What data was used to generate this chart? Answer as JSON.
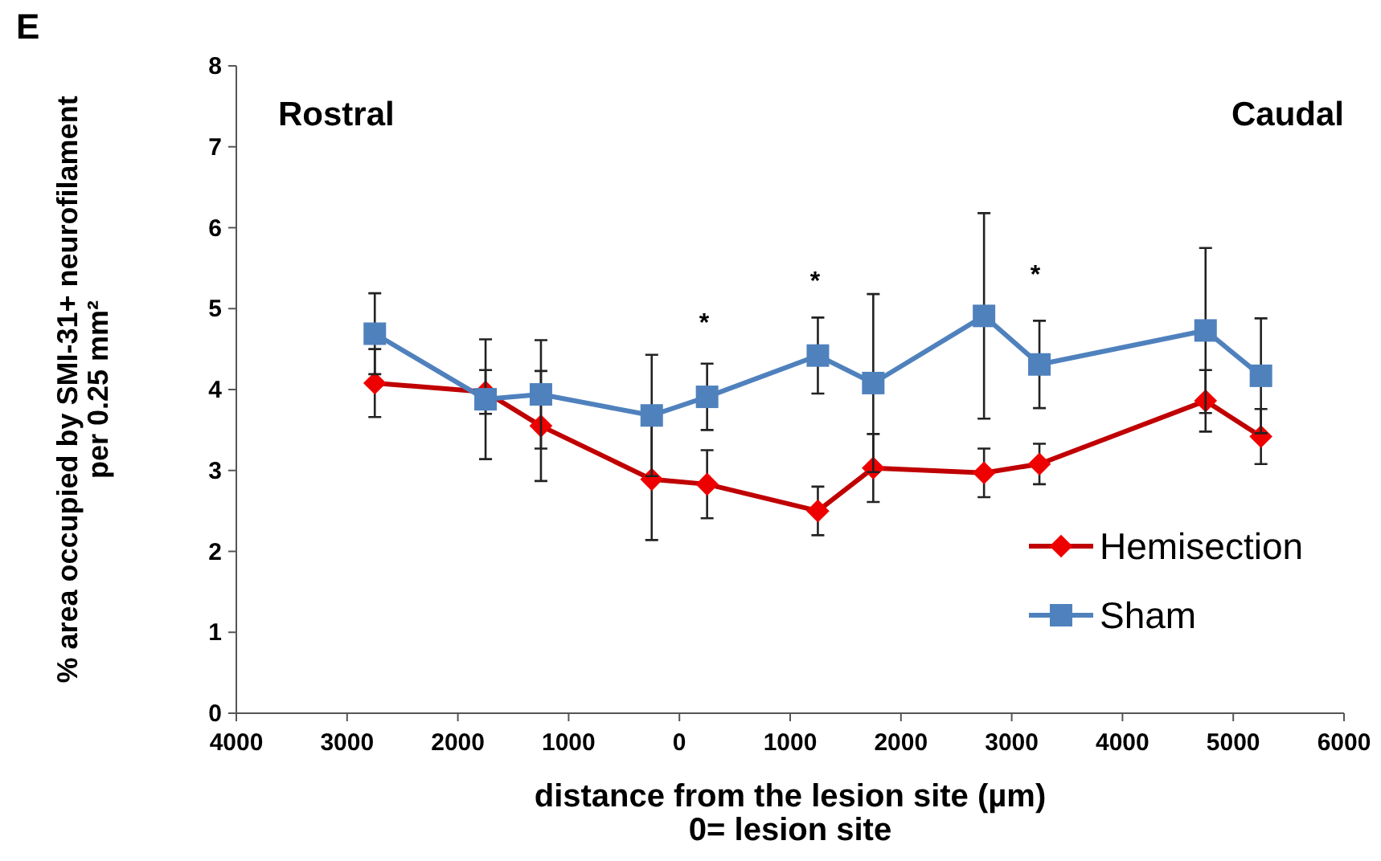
{
  "chart_data": {
    "type": "line",
    "ylabel": "% area occupied by SMI-31+ neurofilament\nper 0.25 mm²",
    "xlabel": "distance from the lesion site (µm)\n0= lesion site",
    "x": [
      -2750,
      -1750,
      -1250,
      -250,
      250,
      1250,
      1750,
      2750,
      3250,
      4750,
      5250
    ],
    "series": [
      {
        "name": "Hemisection",
        "color": "#c00000",
        "marker": "diamond",
        "values": [
          4.08,
          3.97,
          3.55,
          2.89,
          2.83,
          2.5,
          3.03,
          2.97,
          3.08,
          3.86,
          3.42
        ],
        "errors": [
          0.42,
          0.27,
          0.68,
          0.75,
          0.42,
          0.3,
          0.42,
          0.3,
          0.25,
          0.38,
          0.34
        ]
      },
      {
        "name": "Sham",
        "color": "#4f81bd",
        "marker": "square",
        "values": [
          4.69,
          3.88,
          3.94,
          3.68,
          3.91,
          4.42,
          4.08,
          4.91,
          4.31,
          4.73,
          4.17
        ],
        "errors": [
          0.5,
          0.74,
          0.67,
          0.75,
          0.41,
          0.47,
          1.1,
          1.27,
          0.54,
          1.02,
          0.71
        ]
      }
    ],
    "xlim": [
      -4000,
      6000
    ],
    "xticks": [
      {
        "value": -4000,
        "label": "4000"
      },
      {
        "value": -3000,
        "label": "3000"
      },
      {
        "value": -2000,
        "label": "2000"
      },
      {
        "value": -1000,
        "label": "1000"
      },
      0,
      1000,
      2000,
      3000,
      4000,
      5000,
      6000
    ],
    "ylim": [
      0,
      8
    ],
    "yticks": [
      0,
      1,
      2,
      3,
      4,
      5,
      6,
      7,
      8
    ],
    "grid": false,
    "legend": "bottom right",
    "line_style": "solid",
    "annotations": [
      "E",
      "Rostral",
      "Caudal",
      "*",
      "*",
      "*"
    ]
  }
}
